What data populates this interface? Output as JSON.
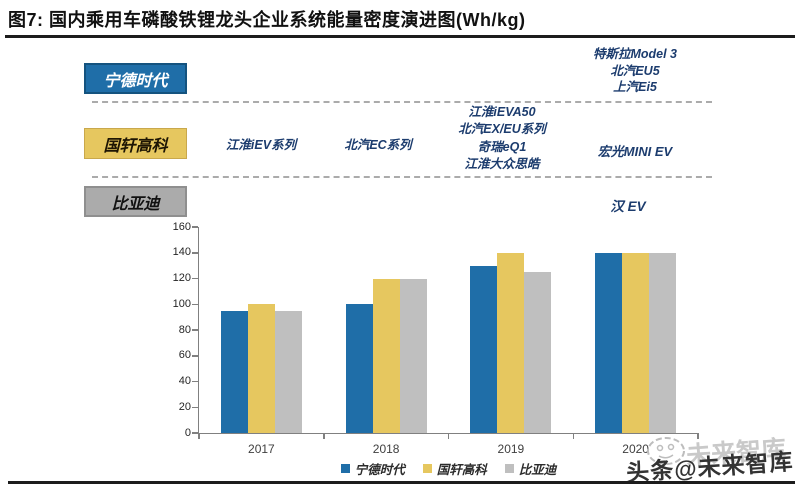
{
  "header": {
    "title": "图7: 国内乘用车磷酸铁锂龙头企业系统能量密度演进图(Wh/kg)"
  },
  "timeline": {
    "companies": [
      {
        "name": "宁德时代",
        "box_color": "#1f6ea8",
        "text_color": "#ffffff"
      },
      {
        "name": "国轩高科",
        "box_color": "#e6c75f",
        "text_color": "#1d1503"
      },
      {
        "name": "比亚迪",
        "box_color": "#ababab",
        "text_color": "#111111"
      }
    ],
    "annotations": {
      "catl_2020": [
        "特斯拉Model 3",
        "北汽EU5",
        "上汽Ei5"
      ],
      "gotion_2017": "江淮iEV系列",
      "gotion_2018": "北汽EC系列",
      "gotion_2019": [
        "江淮iEVA50",
        "北汽EX/EU系列",
        "奇瑞eQ1",
        "江淮大众思皓"
      ],
      "gotion_2020": "宏光MINI EV",
      "byd_2020": "汉 EV"
    },
    "annotation_color": "#1c3c6e",
    "dashed_line_color": "#ababab"
  },
  "chart_data": {
    "type": "bar",
    "title": "",
    "xlabel": "",
    "ylabel": "",
    "categories": [
      "2017",
      "2018",
      "2019",
      "2020"
    ],
    "series": [
      {
        "name": "宁德时代",
        "color": "#1f6ea8",
        "values": [
          95,
          100,
          130,
          140
        ]
      },
      {
        "name": "国轩高科",
        "color": "#e6c75f",
        "values": [
          100,
          120,
          140,
          140
        ]
      },
      {
        "name": "比亚迪",
        "color": "#bfbfbf",
        "values": [
          95,
          120,
          125,
          140
        ]
      }
    ],
    "ylim": [
      0,
      160
    ],
    "ytick_step": 20,
    "yticks": [
      0,
      20,
      40,
      60,
      80,
      100,
      120,
      140,
      160
    ],
    "grid": false,
    "legend_position": "bottom",
    "axis_color": "#808080"
  },
  "watermark": {
    "back_text": "未来智库",
    "front_text": "头条@未来智库"
  }
}
